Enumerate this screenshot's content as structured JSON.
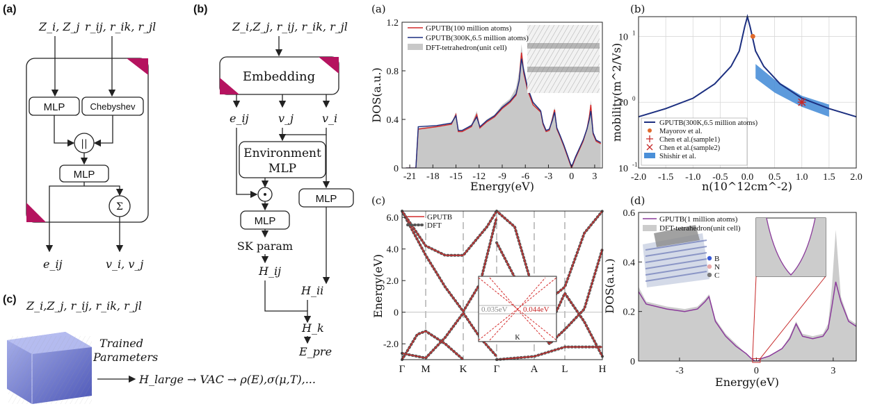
{
  "panel_labels": {
    "a": "(a)",
    "b": "(b)",
    "c": "(c)"
  },
  "panel_a": {
    "inputs_left": "Z_i, Z_j",
    "inputs_right": "r_ij, r_ik, r_jl",
    "mlp1": "MLP",
    "chebyshev": "Chebyshev",
    "concat": "||",
    "mlp2": "MLP",
    "sum": "Σ",
    "out_left": "e_ij",
    "out_right": "v_i, v_j"
  },
  "panel_b": {
    "inputs": "Z_i,Z_j, r_ij, r_ik, r_jl",
    "embedding": "Embedding",
    "e_ij": "e_ij",
    "v_j": "v_j",
    "v_i": "v_i",
    "env_mlp_line1": "Environment",
    "env_mlp_line2": "MLP",
    "odot": "⊙",
    "mlp_left": "MLP",
    "mlp_right": "MLP",
    "sk_param": "SK param",
    "h_ij": "H_ij",
    "h_ii": "H_ii",
    "h_k": "H_k",
    "e_pre": "E_pre"
  },
  "panel_c": {
    "inputs": "Z_i,Z_j, r_ij, r_ik, r_jl",
    "trained_line1": "Trained",
    "trained_line2": "Parameters",
    "flow": "H_large → VAC → ρ(E),σ(μ,T),..."
  },
  "chart_data": [
    {
      "id": "a",
      "panel_label": "(a)",
      "type": "line",
      "xlabel": "Energy(eV)",
      "ylabel": "DOS(a.u.)",
      "xlim": [
        -22,
        4
      ],
      "ylim": [
        0,
        1.2
      ],
      "xticks": [
        "-21",
        "-18",
        "-15",
        "-12",
        "-9",
        "-6",
        "-3",
        "0",
        "3"
      ],
      "yticks": [
        "0",
        "0.4",
        "0.8",
        "1.2"
      ],
      "legend": [
        "GPUTB(100 million atoms)",
        "GPUTB(300K,6.5 million atoms)",
        "DFT-tetrahedron(unit cell)"
      ],
      "series": [
        {
          "name": "GPUTB(100 million atoms)",
          "color": "#d42a2a",
          "x": [
            -21.5,
            -20.2,
            -19.9,
            -17.5,
            -15.6,
            -15.0,
            -14.7,
            -14.2,
            -13.0,
            -12.3,
            -11.9,
            -11.0,
            -10.0,
            -9.0,
            -8.0,
            -7.2,
            -6.8,
            -6.5,
            -6.2,
            -5.7,
            -5.0,
            -4.0,
            -3.7,
            -3.3,
            -2.9,
            -2.5,
            -2.2,
            -1.9,
            -1.5,
            -1.0,
            -0.5,
            0.0,
            0.5,
            1.0,
            1.5,
            2.0,
            2.3,
            2.5,
            2.8,
            3.2,
            3.8
          ],
          "y": [
            0,
            0,
            0.32,
            0.34,
            0.36,
            0.44,
            0.3,
            0.3,
            0.34,
            0.44,
            0.33,
            0.38,
            0.42,
            0.49,
            0.54,
            0.6,
            0.72,
            0.95,
            0.78,
            0.64,
            0.52,
            0.46,
            0.36,
            0.3,
            0.31,
            0.4,
            0.48,
            0.32,
            0.26,
            0.18,
            0.09,
            0.0,
            0.08,
            0.15,
            0.22,
            0.32,
            0.42,
            0.52,
            0.28,
            0.22,
            0.2
          ]
        },
        {
          "name": "GPUTB(300K,6.5 million atoms)",
          "color": "#1c2f80",
          "x": [
            -21.5,
            -20.2,
            -19.9,
            -17.5,
            -15.6,
            -15.0,
            -14.7,
            -14.2,
            -13.0,
            -12.3,
            -11.9,
            -11.0,
            -10.0,
            -9.0,
            -8.0,
            -7.2,
            -6.8,
            -6.5,
            -6.2,
            -5.7,
            -5.0,
            -4.0,
            -3.7,
            -3.3,
            -2.9,
            -2.5,
            -2.2,
            -1.9,
            -1.5,
            -1.0,
            -0.5,
            0.0,
            0.5,
            1.0,
            1.5,
            2.0,
            2.3,
            2.5,
            2.8,
            3.2,
            3.8
          ],
          "y": [
            0,
            0,
            0.34,
            0.35,
            0.37,
            0.43,
            0.31,
            0.31,
            0.35,
            0.42,
            0.34,
            0.39,
            0.43,
            0.5,
            0.55,
            0.61,
            0.72,
            0.9,
            0.8,
            0.66,
            0.54,
            0.47,
            0.37,
            0.31,
            0.32,
            0.39,
            0.46,
            0.33,
            0.27,
            0.19,
            0.1,
            0.01,
            0.09,
            0.16,
            0.23,
            0.32,
            0.4,
            0.47,
            0.29,
            0.23,
            0.21
          ]
        },
        {
          "name": "DFT-tetrahedron(unit cell)",
          "color": "#c8c8c8",
          "fill": true,
          "x": [
            -21.5,
            -20.2,
            -19.9,
            -17.5,
            -15.6,
            -15.0,
            -14.7,
            -14.2,
            -13.0,
            -12.3,
            -11.9,
            -11.0,
            -10.0,
            -9.0,
            -8.0,
            -7.2,
            -6.8,
            -6.5,
            -6.2,
            -5.7,
            -5.0,
            -4.0,
            -3.7,
            -3.3,
            -2.9,
            -2.5,
            -2.2,
            -1.9,
            -1.5,
            -1.0,
            -0.5,
            0.0,
            0.5,
            1.0,
            1.5,
            2.0,
            2.3,
            2.5,
            2.8,
            3.2,
            3.8
          ],
          "y": [
            0,
            0,
            0.33,
            0.35,
            0.37,
            0.46,
            0.31,
            0.31,
            0.36,
            0.47,
            0.34,
            0.4,
            0.44,
            0.52,
            0.57,
            0.66,
            0.8,
            1.02,
            0.84,
            0.68,
            0.55,
            0.48,
            0.36,
            0.31,
            0.32,
            0.43,
            0.5,
            0.33,
            0.27,
            0.19,
            0.1,
            0.0,
            0.1,
            0.17,
            0.24,
            0.34,
            0.45,
            0.56,
            0.29,
            0.23,
            0.21
          ]
        }
      ]
    },
    {
      "id": "b",
      "panel_label": "(b)",
      "type": "line",
      "xlabel": "n(10^12cm^-2)",
      "ylabel": "mobility(m^2/Vs)",
      "xlim": [
        -2.0,
        2.0
      ],
      "ylim_log10": [
        -1,
        1.3
      ],
      "xticks": [
        "-2.0",
        "-1.5",
        "-1.0",
        "-0.5",
        "0.0",
        "0.5",
        "1.0",
        "1.5",
        "2.0"
      ],
      "yticks": [
        "10^-1",
        "10^0",
        "10^1"
      ],
      "legend": [
        "GPUTB(300K,6.5 million atoms)",
        "Mayorov et al.",
        "Chen et al.(sample1)",
        "Chen et al.(sample2)",
        "Shishir et al."
      ],
      "series": [
        {
          "name": "GPUTB(300K,6.5 million atoms)",
          "color": "#1c2f80",
          "x": [
            -2.0,
            -1.5,
            -1.0,
            -0.6,
            -0.3,
            -0.15,
            -0.05,
            0.0,
            0.05,
            0.15,
            0.3,
            0.6,
            1.0,
            1.5,
            2.0
          ],
          "y": [
            0.6,
            0.8,
            1.15,
            1.9,
            3.5,
            6.0,
            14.0,
            25.0,
            14.0,
            6.0,
            3.5,
            1.9,
            1.15,
            0.8,
            0.6
          ]
        },
        {
          "name": "Mayorov et al.",
          "color": "#e06a2c",
          "marker": "circle",
          "x": [
            0.1
          ],
          "y": [
            10.0
          ]
        },
        {
          "name": "Chen et al.(sample1)",
          "color": "#c62828",
          "marker": "plus",
          "x": [
            1.0
          ],
          "y": [
            1.0
          ]
        },
        {
          "name": "Chen et al.(sample2)",
          "color": "#c62828",
          "marker": "x",
          "x": [
            1.0
          ],
          "y": [
            1.0
          ]
        },
        {
          "name": "Shishir et al.",
          "color": "#4a8fd8",
          "band": true,
          "x": [
            0.15,
            0.5,
            1.0,
            1.5
          ],
          "y_low": [
            2.3,
            1.4,
            0.85,
            0.6
          ],
          "y_high": [
            3.8,
            2.2,
            1.25,
            0.92
          ]
        }
      ]
    },
    {
      "id": "c",
      "panel_label": "(c)",
      "type": "line",
      "xlabel": "",
      "ylabel": "Energy(eV)",
      "ylim": [
        -3.0,
        6.4
      ],
      "xticks": [
        "Γ",
        "M",
        "K",
        "Γ",
        "A",
        "L",
        "H"
      ],
      "yticks": [
        "-2.0",
        "0",
        "2.0",
        "4.0",
        "6.0"
      ],
      "legend": [
        "GPUTB",
        "DFT"
      ],
      "inset": {
        "left_label": "0.035eV",
        "right_label": "0.044eV",
        "k_label": "K"
      }
    },
    {
      "id": "d",
      "panel_label": "(d)",
      "type": "line",
      "xlabel": "Energy(eV)",
      "ylabel": "DOS(a.u.)",
      "xlim": [
        -4.6,
        3.9
      ],
      "ylim": [
        0,
        0.6
      ],
      "xticks": [
        "-3",
        "0",
        "3"
      ],
      "yticks": [
        "0",
        "0.2",
        "0.4",
        "0.6"
      ],
      "legend": [
        "GPUTB(1 million atoms)",
        "DFT-tetrahedron(unit cell)"
      ],
      "structure_legend": [
        "B",
        "N",
        "C"
      ],
      "series": [
        {
          "name": "GPUTB(1 million atoms)",
          "color": "#8a3a9a",
          "x": [
            -4.6,
            -4.3,
            -3.5,
            -2.8,
            -2.3,
            -2.0,
            -1.85,
            -1.6,
            -1.2,
            -0.8,
            -0.4,
            -0.2,
            -0.05,
            0.0,
            0.05,
            0.2,
            0.5,
            1.0,
            1.3,
            1.55,
            1.8,
            2.2,
            2.6,
            2.8,
            2.95,
            3.1,
            3.3,
            3.6,
            3.9
          ],
          "y": [
            0.28,
            0.23,
            0.21,
            0.2,
            0.21,
            0.24,
            0.26,
            0.16,
            0.1,
            0.06,
            0.03,
            0.01,
            0.0,
            0.0,
            0.0,
            0.01,
            0.02,
            0.05,
            0.09,
            0.15,
            0.1,
            0.09,
            0.1,
            0.13,
            0.22,
            0.32,
            0.24,
            0.16,
            0.14
          ]
        },
        {
          "name": "DFT-tetrahedron(unit cell)",
          "color": "#cccccc",
          "fill": true,
          "x": [
            -4.6,
            -4.3,
            -3.5,
            -2.8,
            -2.3,
            -2.0,
            -1.85,
            -1.6,
            -1.2,
            -0.8,
            -0.4,
            -0.2,
            -0.05,
            0.0,
            0.05,
            0.2,
            0.5,
            1.0,
            1.3,
            1.55,
            1.8,
            2.2,
            2.6,
            2.8,
            2.95,
            3.1,
            3.3,
            3.6,
            3.9
          ],
          "y": [
            0.3,
            0.24,
            0.22,
            0.21,
            0.22,
            0.25,
            0.27,
            0.17,
            0.11,
            0.07,
            0.03,
            0.01,
            0.0,
            0.0,
            0.0,
            0.01,
            0.02,
            0.05,
            0.1,
            0.16,
            0.11,
            0.1,
            0.11,
            0.15,
            0.3,
            0.53,
            0.26,
            0.17,
            0.15
          ]
        }
      ]
    }
  ]
}
